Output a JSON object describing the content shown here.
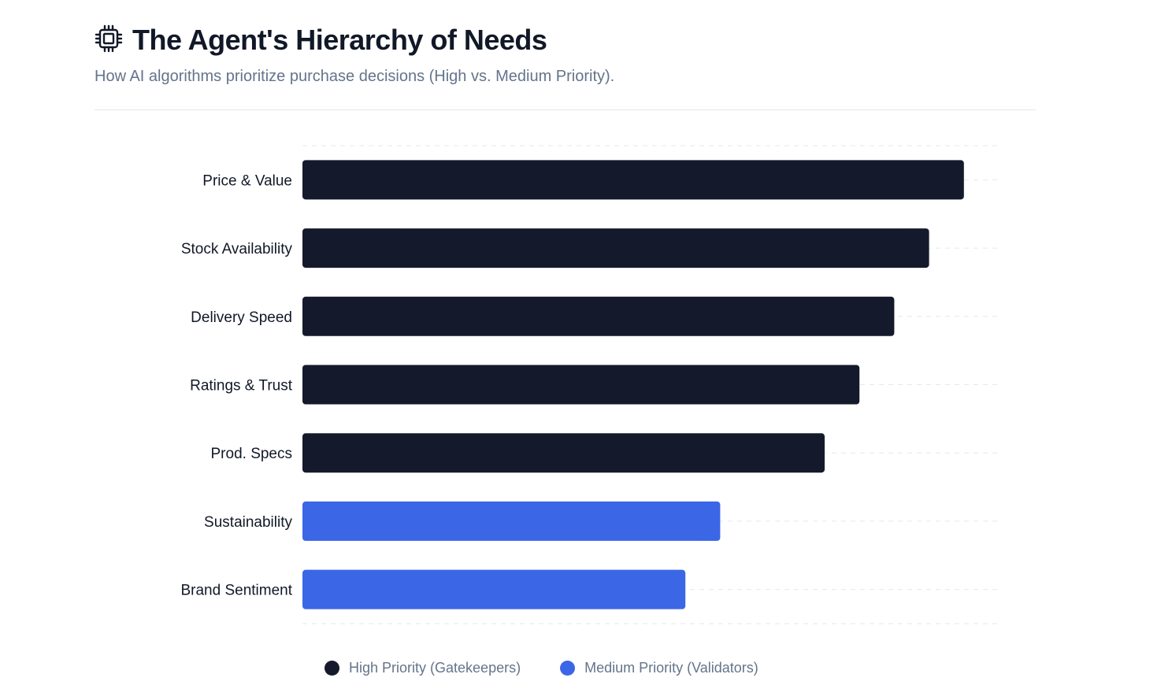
{
  "header": {
    "icon": "cpu-chip-icon",
    "title": "The Agent's Hierarchy of Needs",
    "subtitle": "How AI algorithms prioritize purchase decisions (High vs. Medium Priority)."
  },
  "colors": {
    "high": "#141a2b",
    "medium": "#3b66e6",
    "grid": "#e5e7eb"
  },
  "chart_data": {
    "type": "bar",
    "orientation": "horizontal",
    "categories": [
      "Price & Value",
      "Stock Availability",
      "Delivery Speed",
      "Ratings & Trust",
      "Prod. Specs",
      "Sustainability",
      "Brand Sentiment"
    ],
    "values": [
      95,
      90,
      85,
      80,
      75,
      60,
      55
    ],
    "priority": [
      "high",
      "high",
      "high",
      "high",
      "high",
      "medium",
      "medium"
    ],
    "xlim": [
      0,
      100
    ],
    "x_axis_visible": false,
    "grid": true,
    "legend_position": "bottom",
    "legend": [
      {
        "key": "high",
        "label": "High Priority (Gatekeepers)"
      },
      {
        "key": "medium",
        "label": "Medium Priority (Validators)"
      }
    ]
  }
}
